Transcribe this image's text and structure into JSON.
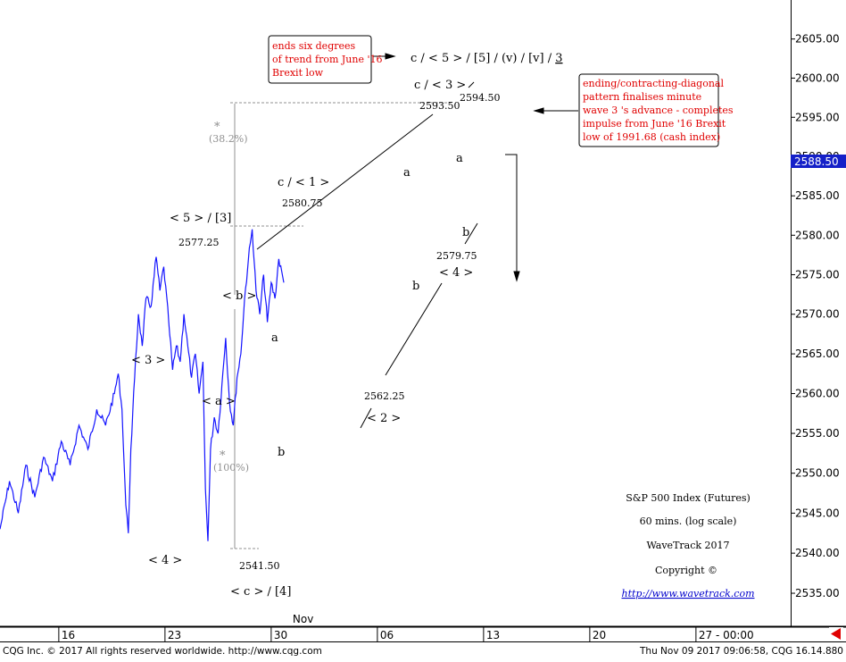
{
  "window": {
    "footer_left": "CQG Inc. © 2017 All rights reserved worldwide. http://www.cqg.com",
    "footer_right": "Thu Nov 09 2017 09:06:58, CQG 16.14.880"
  },
  "colors": {
    "price_line": "#1414ff",
    "annotation_red": "#e00000",
    "text": "#000000",
    "guide_gray": "#a0a0a0",
    "last_price_bg": "#1420c8"
  },
  "chart_data": {
    "type": "line",
    "title": "S&P 500 Index (Futures)",
    "subtitle": "60 mins. (log scale)",
    "y_scale": "log",
    "ylim": [
      2531,
      2610
    ],
    "yticks": [
      2535,
      2540,
      2545,
      2550,
      2555,
      2560,
      2565,
      2570,
      2575,
      2580,
      2585,
      2590,
      2595,
      2600,
      2605
    ],
    "ytick_labels": [
      "2535.00",
      "2540.00",
      "2545.00",
      "2550.00",
      "2555.00",
      "2560.00",
      "2565.00",
      "2570.00",
      "2575.00",
      "2580.00",
      "2585.00",
      "2590.00",
      "2595.00",
      "2600.00",
      "2605.00"
    ],
    "last_price": 2588.5,
    "last_price_label": "2588.50",
    "x_domain": [
      "2017-10-12 03:00",
      "2017-10-30 20:00"
    ],
    "xticks": [
      {
        "date": "2017-10-16",
        "label": "16"
      },
      {
        "date": "2017-10-23",
        "label": "23"
      },
      {
        "date": "2017-10-30",
        "label": "30"
      },
      {
        "date": "2017-11-06",
        "label": "06"
      },
      {
        "date": "2017-11-13",
        "label": "13"
      },
      {
        "date": "2017-11-20",
        "label": "20"
      },
      {
        "date": "2017-11-27",
        "label": "27 - 00:00"
      }
    ],
    "month_label": {
      "date": "2017-11-01",
      "label": "Nov"
    },
    "series": [
      {
        "points": [
          [
            "2017-10-12 03:00",
            2543
          ],
          [
            "2017-10-12 18:00",
            2549
          ],
          [
            "2017-10-13 08:00",
            2545
          ],
          [
            "2017-10-13 20:00",
            2551
          ],
          [
            "2017-10-14 10:00",
            2547
          ],
          [
            "2017-10-15 00:00",
            2552
          ],
          [
            "2017-10-15 14:00",
            2549
          ],
          [
            "2017-10-16 04:00",
            2554
          ],
          [
            "2017-10-16 18:00",
            2551
          ],
          [
            "2017-10-17 08:00",
            2556
          ],
          [
            "2017-10-17 22:00",
            2553
          ],
          [
            "2017-10-18 12:00",
            2558
          ],
          [
            "2017-10-19 02:00",
            2556
          ],
          [
            "2017-10-19 16:00",
            2560
          ],
          [
            "2017-10-19 22:00",
            2562.5
          ],
          [
            "2017-10-20 04:00",
            2558
          ],
          [
            "2017-10-20 10:00",
            2546
          ],
          [
            "2017-10-20 14:00",
            2542.5
          ],
          [
            "2017-10-20 18:00",
            2553
          ],
          [
            "2017-10-21 00:00",
            2562
          ],
          [
            "2017-10-21 06:00",
            2570
          ],
          [
            "2017-10-21 12:00",
            2566
          ],
          [
            "2017-10-21 18:00",
            2572
          ],
          [
            "2017-10-22 02:00",
            2571
          ],
          [
            "2017-10-22 10:00",
            2577.25
          ],
          [
            "2017-10-22 16:00",
            2573
          ],
          [
            "2017-10-22 22:00",
            2576
          ],
          [
            "2017-10-23 06:00",
            2569
          ],
          [
            "2017-10-23 12:00",
            2563
          ],
          [
            "2017-10-23 18:00",
            2566
          ],
          [
            "2017-10-24 00:00",
            2564
          ],
          [
            "2017-10-24 06:00",
            2570
          ],
          [
            "2017-10-24 12:00",
            2566
          ],
          [
            "2017-10-24 18:00",
            2562
          ],
          [
            "2017-10-25 00:00",
            2565
          ],
          [
            "2017-10-25 06:00",
            2560
          ],
          [
            "2017-10-25 12:00",
            2564
          ],
          [
            "2017-10-25 16:00",
            2548
          ],
          [
            "2017-10-25 20:00",
            2541.5
          ],
          [
            "2017-10-26 00:00",
            2553
          ],
          [
            "2017-10-26 06:00",
            2557
          ],
          [
            "2017-10-26 12:00",
            2555
          ],
          [
            "2017-10-26 18:00",
            2561
          ],
          [
            "2017-10-27 00:00",
            2567
          ],
          [
            "2017-10-27 06:00",
            2559
          ],
          [
            "2017-10-27 12:00",
            2556
          ],
          [
            "2017-10-27 18:00",
            2562
          ],
          [
            "2017-10-28 00:00",
            2565
          ],
          [
            "2017-10-28 06:00",
            2572
          ],
          [
            "2017-10-28 12:00",
            2577
          ],
          [
            "2017-10-28 18:00",
            2580.75
          ],
          [
            "2017-10-29 00:00",
            2573
          ],
          [
            "2017-10-29 06:00",
            2570
          ],
          [
            "2017-10-29 12:00",
            2575
          ],
          [
            "2017-10-29 18:00",
            2569
          ],
          [
            "2017-10-30 00:00",
            2574
          ],
          [
            "2017-10-30 06:00",
            2572
          ],
          [
            "2017-10-30 12:00",
            2577
          ],
          [
            "2017-10-30 20:00",
            2574
          ]
        ]
      }
    ],
    "annotations": [
      {
        "text": "c / < 5 > / [5] / (v) / [v] / ",
        "suffix": "3",
        "suffix_underline": true
      },
      {
        "text": "c / < 3 >"
      },
      {
        "text": "2594.50"
      },
      {
        "text": "2593.50"
      },
      {
        "text": "c / < 1 >"
      },
      {
        "text": "2580.75"
      },
      {
        "text": "< 5 > / [3]"
      },
      {
        "text": "2577.25"
      },
      {
        "text": "< b >"
      },
      {
        "text": "< 3 >"
      },
      {
        "text": "< a >"
      },
      {
        "text": "a"
      },
      {
        "text": "b"
      },
      {
        "text": "2562.25"
      },
      {
        "text": "< 2 >"
      },
      {
        "text": "a"
      },
      {
        "text": "b"
      },
      {
        "text": "a"
      },
      {
        "text": "b"
      },
      {
        "text": "2579.75"
      },
      {
        "text": "< 4 >"
      },
      {
        "text": "< 4 >"
      },
      {
        "text": "2541.50"
      },
      {
        "text": "< c > / [4]"
      },
      {
        "text": "*"
      },
      {
        "text": "(38.2%)"
      },
      {
        "text": "*"
      },
      {
        "text": "(100%)"
      }
    ],
    "notes": [
      {
        "lines": [
          "ends six degrees",
          "of trend from June '16",
          "Brexit low"
        ]
      },
      {
        "lines": [
          "ending/contracting-diagonal",
          "pattern finalises minute",
          "wave 3 's advance - completes",
          "impulse from June '16 Brexit",
          "low of 1991.68 (cash index)"
        ]
      }
    ],
    "info_block": [
      "S&P 500 Index (Futures)",
      "60 mins. (log scale)",
      "WaveTrack 2017",
      "Copyright  ©",
      "http://www.wavetrack.com"
    ]
  }
}
